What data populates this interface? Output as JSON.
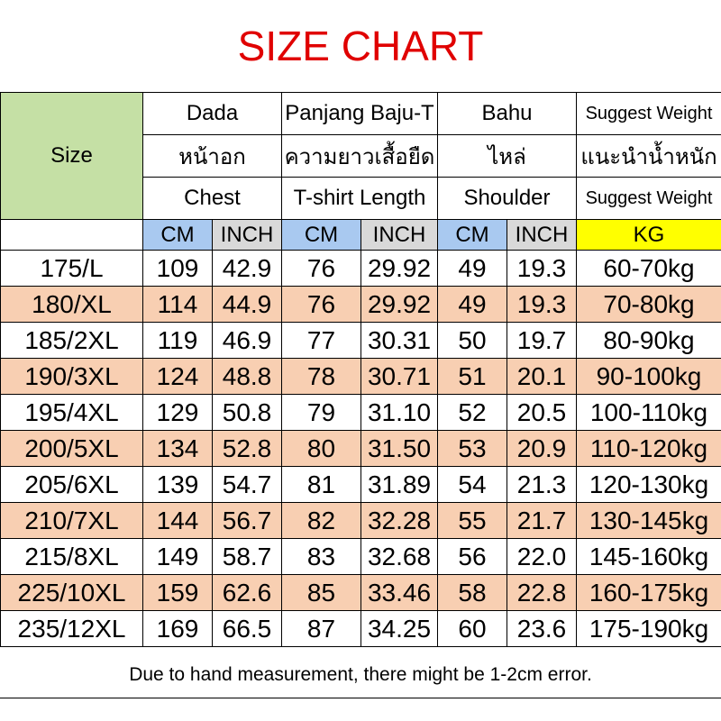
{
  "title": "SIZE CHART",
  "size_header": "Size",
  "columns": [
    {
      "lines": [
        "Dada",
        "หน้าอก",
        "Chest"
      ]
    },
    {
      "lines": [
        "Panjang Baju-T",
        "ความยาวเสื้อยืด",
        "T-shirt Length"
      ]
    },
    {
      "lines": [
        "Bahu",
        "ไหล่",
        "Shoulder"
      ]
    },
    {
      "lines": [
        "Suggest Weight",
        "แนะนำน้ำหนัก",
        "Suggest Weight"
      ]
    }
  ],
  "units": [
    "CM",
    "INCH",
    "CM",
    "INCH",
    "CM",
    "INCH",
    "KG"
  ],
  "colors": {
    "title": "#e00000",
    "size_header_bg": "#c5e0a5",
    "cm_bg": "#a9c9f0",
    "inch_bg": "#d9d9d9",
    "kg_bg": "#ffff00",
    "alt_row_bg": "#f8cfb2"
  },
  "chart_data": {
    "type": "table",
    "title": "SIZE CHART",
    "columns": [
      "Size",
      "Chest CM",
      "Chest INCH",
      "T-shirt Length CM",
      "T-shirt Length INCH",
      "Shoulder CM",
      "Shoulder INCH",
      "Suggest Weight KG"
    ],
    "rows": [
      [
        "175/L",
        "109",
        "42.9",
        "76",
        "29.92",
        "49",
        "19.3",
        "60-70kg"
      ],
      [
        "180/XL",
        "114",
        "44.9",
        "76",
        "29.92",
        "49",
        "19.3",
        "70-80kg"
      ],
      [
        "185/2XL",
        "119",
        "46.9",
        "77",
        "30.31",
        "50",
        "19.7",
        "80-90kg"
      ],
      [
        "190/3XL",
        "124",
        "48.8",
        "78",
        "30.71",
        "51",
        "20.1",
        "90-100kg"
      ],
      [
        "195/4XL",
        "129",
        "50.8",
        "79",
        "31.10",
        "52",
        "20.5",
        "100-110kg"
      ],
      [
        "200/5XL",
        "134",
        "52.8",
        "80",
        "31.50",
        "53",
        "20.9",
        "110-120kg"
      ],
      [
        "205/6XL",
        "139",
        "54.7",
        "81",
        "31.89",
        "54",
        "21.3",
        "120-130kg"
      ],
      [
        "210/7XL",
        "144",
        "56.7",
        "82",
        "32.28",
        "55",
        "21.7",
        "130-145kg"
      ],
      [
        "215/8XL",
        "149",
        "58.7",
        "83",
        "32.68",
        "56",
        "22.0",
        "145-160kg"
      ],
      [
        "225/10XL",
        "159",
        "62.6",
        "85",
        "33.46",
        "58",
        "22.8",
        "160-175kg"
      ],
      [
        "235/12XL",
        "169",
        "66.5",
        "87",
        "34.25",
        "60",
        "23.6",
        "175-190kg"
      ]
    ]
  },
  "note": "Due to hand measurement, there might be 1-2cm error."
}
